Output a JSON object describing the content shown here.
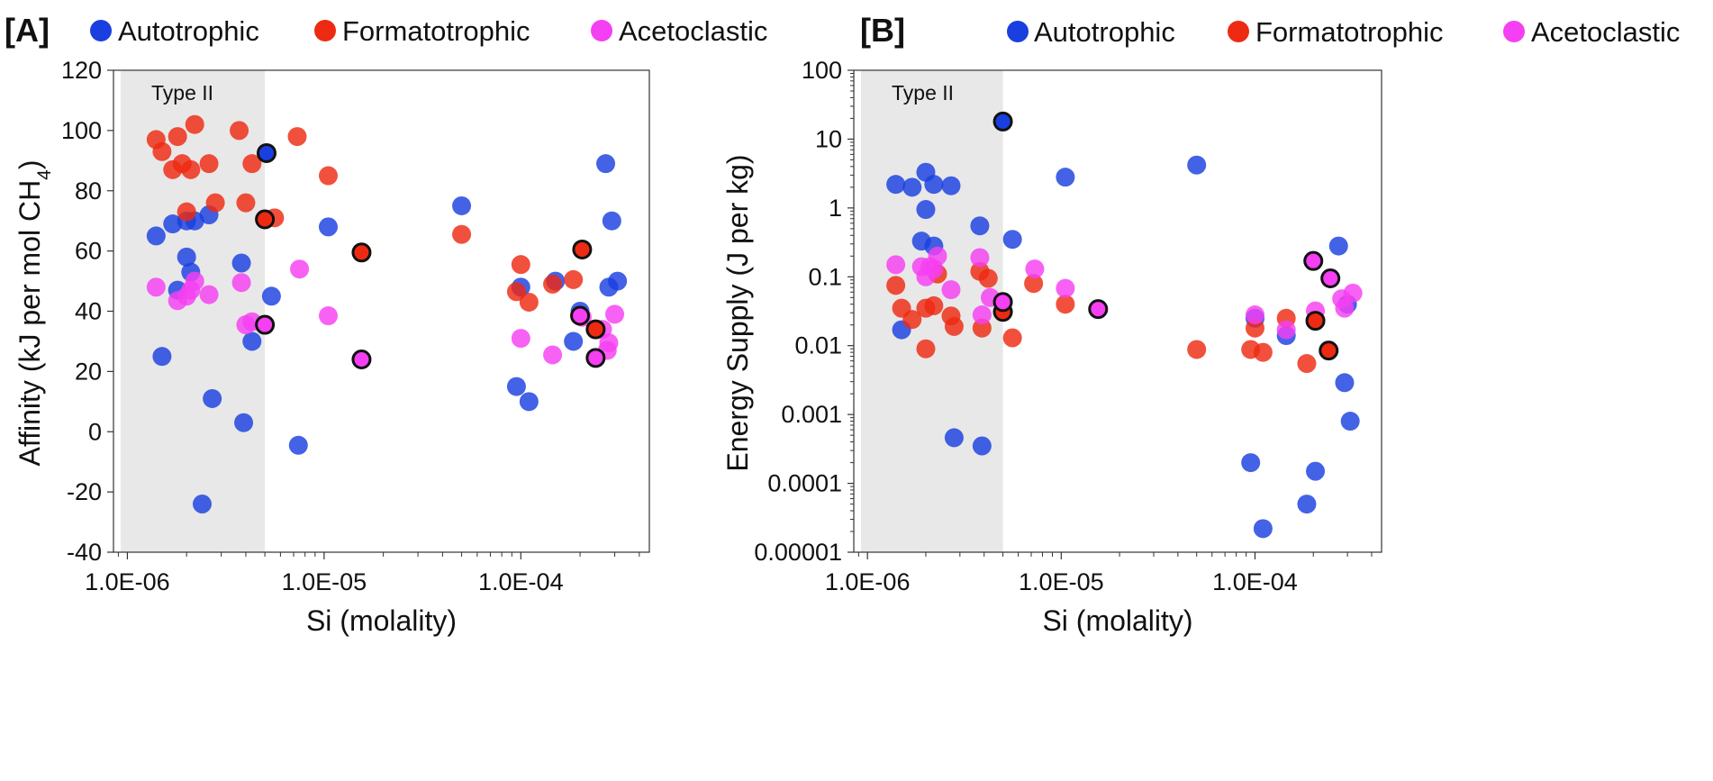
{
  "legend": [
    {
      "key": "autotrophic",
      "label": "Autotrophic",
      "color": "#1a3fe0"
    },
    {
      "key": "formatotrophic",
      "label": "Formatotrophic",
      "color": "#ee2a12"
    },
    {
      "key": "acetoclastic",
      "label": "Acetoclastic",
      "color": "#f53ff2"
    }
  ],
  "chart_data": [
    {
      "panel": "[A]",
      "type": "scatter",
      "xscale": "log",
      "xlim": [
        8.5e-07,
        0.00045
      ],
      "xticks": [
        1e-06,
        1e-05,
        0.0001
      ],
      "xtick_labels": [
        "1.0E-06",
        "1.0E-05",
        "1.0E-04"
      ],
      "yscale": "linear",
      "ylim": [
        -40,
        120
      ],
      "yticks": [
        -40,
        -20,
        0,
        20,
        40,
        60,
        80,
        100,
        120
      ],
      "ytick_labels": [
        "-40",
        "-20",
        "0",
        "20",
        "40",
        "60",
        "80",
        "100",
        "120"
      ],
      "xlabel": "Si (molality)",
      "ylabel_main": "Affinity (kJ per mol CH",
      "ylabel_sub": "4",
      "ylabel_end": ")",
      "region": {
        "label": "Type II",
        "x_range": [
          8.5e-07,
          5e-06
        ]
      },
      "series": [
        {
          "name": "Autotrophic",
          "points": [
            [
              1.4e-06,
              65
            ],
            [
              1.5e-06,
              25
            ],
            [
              1.7e-06,
              69
            ],
            [
              1.8e-06,
              47
            ],
            [
              2e-06,
              70
            ],
            [
              2e-06,
              58
            ],
            [
              2.1e-06,
              53
            ],
            [
              2.2e-06,
              70
            ],
            [
              2.4e-06,
              -24
            ],
            [
              2.6e-06,
              72
            ],
            [
              2.7e-06,
              11
            ],
            [
              3.8e-06,
              56
            ],
            [
              3.9e-06,
              3
            ],
            [
              4.3e-06,
              30
            ],
            [
              5.4e-06,
              45
            ],
            [
              7.4e-06,
              -4.5
            ],
            [
              1.05e-05,
              68
            ],
            [
              5e-05,
              75
            ],
            [
              9.5e-05,
              15
            ],
            [
              0.0001,
              48
            ],
            [
              0.00011,
              10
            ],
            [
              0.00015,
              50
            ],
            [
              0.000185,
              30
            ],
            [
              0.0002,
              40
            ],
            [
              0.00027,
              89
            ],
            [
              0.00028,
              48
            ],
            [
              0.00029,
              70
            ],
            [
              0.00031,
              50
            ]
          ],
          "outlined": [
            [
              5.1e-06,
              92.5
            ]
          ]
        },
        {
          "name": "Formatotrophic",
          "points": [
            [
              1.4e-06,
              97
            ],
            [
              1.5e-06,
              93
            ],
            [
              1.7e-06,
              87
            ],
            [
              1.8e-06,
              98
            ],
            [
              1.9e-06,
              89
            ],
            [
              2e-06,
              73
            ],
            [
              2.1e-06,
              87
            ],
            [
              2.2e-06,
              102
            ],
            [
              2.6e-06,
              89
            ],
            [
              2.8e-06,
              76
            ],
            [
              3.7e-06,
              100
            ],
            [
              4e-06,
              76
            ],
            [
              4.3e-06,
              89
            ],
            [
              5.6e-06,
              71
            ],
            [
              7.3e-06,
              98
            ],
            [
              1.05e-05,
              85
            ],
            [
              5e-05,
              65.5
            ],
            [
              9.5e-05,
              46.5
            ],
            [
              0.0001,
              55.5
            ],
            [
              0.00011,
              43
            ],
            [
              0.000145,
              49
            ],
            [
              0.000185,
              50.5
            ]
          ],
          "outlined": [
            [
              5e-06,
              70.5
            ],
            [
              1.55e-05,
              59.5
            ],
            [
              0.000205,
              60.5
            ],
            [
              0.00024,
              34
            ]
          ]
        },
        {
          "name": "Acetoclastic",
          "points": [
            [
              1.4e-06,
              48
            ],
            [
              1.8e-06,
              43.5
            ],
            [
              2e-06,
              45
            ],
            [
              2.1e-06,
              47
            ],
            [
              2.2e-06,
              50
            ],
            [
              2.6e-06,
              45.5
            ],
            [
              3.8e-06,
              49.5
            ],
            [
              4e-06,
              35.5
            ],
            [
              4.3e-06,
              36.5
            ],
            [
              7.5e-06,
              54
            ],
            [
              1.05e-05,
              38.5
            ],
            [
              0.0001,
              31
            ],
            [
              0.000145,
              25.5
            ],
            [
              0.000205,
              38
            ],
            [
              0.00026,
              34
            ],
            [
              0.000275,
              27
            ],
            [
              0.00028,
              29.5
            ],
            [
              0.0003,
              39
            ]
          ],
          "outlined": [
            [
              5e-06,
              35.5
            ],
            [
              1.55e-05,
              24
            ],
            [
              0.0002,
              38.5
            ],
            [
              0.00024,
              24.5
            ]
          ]
        }
      ]
    },
    {
      "panel": "[B]",
      "type": "scatter",
      "xscale": "log",
      "xlim": [
        8.5e-07,
        0.00045
      ],
      "xticks": [
        1e-06,
        1e-05,
        0.0001
      ],
      "xtick_labels": [
        "1.0E-06",
        "1.0E-05",
        "1.0E-04"
      ],
      "yscale": "log",
      "ylim": [
        1e-05,
        100
      ],
      "yticks": [
        1e-05,
        0.0001,
        0.001,
        0.01,
        0.1,
        1,
        10,
        100
      ],
      "ytick_labels": [
        "0.00001",
        "0.0001",
        "0.001",
        "0.01",
        "0.1",
        "1",
        "10",
        "100"
      ],
      "xlabel": "Si (molality)",
      "ylabel_main": "Energy Supply (J per kg)",
      "ylabel_sub": "",
      "ylabel_end": "",
      "region": {
        "label": "Type II",
        "x_range": [
          8.5e-07,
          5e-06
        ]
      },
      "series": [
        {
          "name": "Autotrophic",
          "points": [
            [
              1.4e-06,
              2.2
            ],
            [
              1.5e-06,
              0.017
            ],
            [
              1.7e-06,
              2.0
            ],
            [
              1.9e-06,
              0.33
            ],
            [
              2e-06,
              3.3
            ],
            [
              2e-06,
              0.95
            ],
            [
              2.2e-06,
              2.2
            ],
            [
              2.2e-06,
              0.28
            ],
            [
              2.7e-06,
              2.1
            ],
            [
              2.8e-06,
              0.00046
            ],
            [
              3.8e-06,
              0.55
            ],
            [
              3.9e-06,
              0.00035
            ],
            [
              5.6e-06,
              0.35
            ],
            [
              1.05e-05,
              2.8
            ],
            [
              5e-05,
              4.2
            ],
            [
              9.5e-05,
              0.0002
            ],
            [
              0.0001,
              0.025
            ],
            [
              0.00011,
              2.2e-05
            ],
            [
              0.000145,
              0.014
            ],
            [
              0.000185,
              5e-05
            ],
            [
              0.000205,
              0.00015
            ],
            [
              0.00027,
              0.28
            ],
            [
              0.00029,
              0.0029
            ],
            [
              0.00031,
              0.0008
            ],
            [
              0.0003,
              0.04
            ]
          ],
          "outlined": [
            [
              5e-06,
              18
            ]
          ]
        },
        {
          "name": "Formatotrophic",
          "points": [
            [
              1.4e-06,
              0.075
            ],
            [
              1.5e-06,
              0.035
            ],
            [
              1.7e-06,
              0.024
            ],
            [
              2e-06,
              0.035
            ],
            [
              2e-06,
              0.009
            ],
            [
              2.2e-06,
              0.038
            ],
            [
              2.3e-06,
              0.11
            ],
            [
              2.7e-06,
              0.027
            ],
            [
              2.8e-06,
              0.019
            ],
            [
              3.8e-06,
              0.12
            ],
            [
              3.9e-06,
              0.018
            ],
            [
              4.2e-06,
              0.095
            ],
            [
              5.6e-06,
              0.013
            ],
            [
              7.2e-06,
              0.08
            ],
            [
              1.05e-05,
              0.04
            ],
            [
              5e-05,
              0.0088
            ],
            [
              9.5e-05,
              0.0088
            ],
            [
              0.0001,
              0.018
            ],
            [
              0.00011,
              0.008
            ],
            [
              0.000145,
              0.025
            ],
            [
              0.000185,
              0.0055
            ]
          ],
          "outlined": [
            [
              5e-06,
              0.031
            ],
            [
              0.000205,
              0.023
            ],
            [
              0.00024,
              0.0085
            ]
          ]
        },
        {
          "name": "Acetoclastic",
          "points": [
            [
              1.4e-06,
              0.15
            ],
            [
              1.9e-06,
              0.14
            ],
            [
              2e-06,
              0.1
            ],
            [
              2.1e-06,
              0.14
            ],
            [
              2.2e-06,
              0.13
            ],
            [
              2.3e-06,
              0.2
            ],
            [
              2.7e-06,
              0.065
            ],
            [
              3.8e-06,
              0.19
            ],
            [
              3.9e-06,
              0.028
            ],
            [
              4.3e-06,
              0.05
            ],
            [
              7.3e-06,
              0.13
            ],
            [
              1.05e-05,
              0.068
            ],
            [
              0.0001,
              0.028
            ],
            [
              0.000145,
              0.017
            ],
            [
              0.000205,
              0.032
            ],
            [
              0.00028,
              0.048
            ],
            [
              0.00029,
              0.035
            ],
            [
              0.00032,
              0.058
            ]
          ],
          "outlined": [
            [
              5e-06,
              0.043
            ],
            [
              1.55e-05,
              0.034
            ],
            [
              0.0002,
              0.17
            ],
            [
              0.000245,
              0.095
            ]
          ]
        }
      ]
    }
  ]
}
